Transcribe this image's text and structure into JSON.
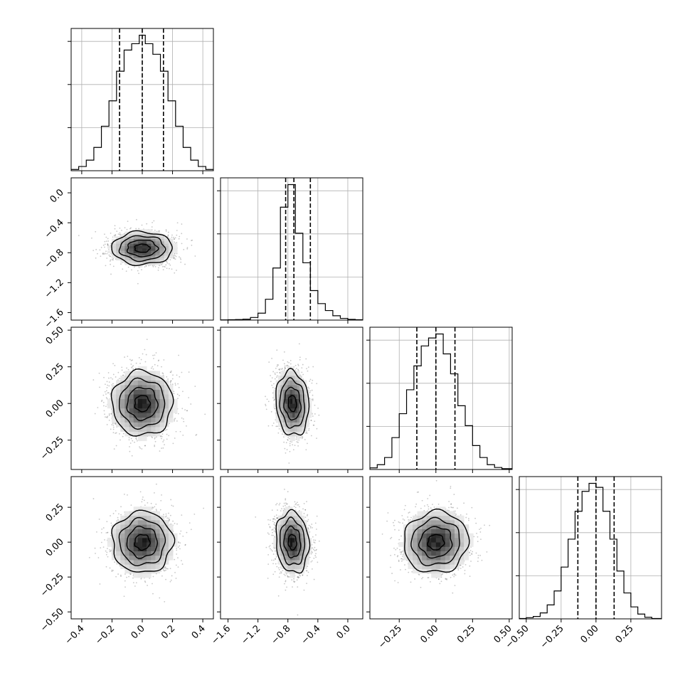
{
  "chart_data": {
    "type": "corner",
    "grid": true,
    "n_params": 4,
    "diag_quantiles": [
      [
        -0.15,
        0.0,
        0.14
      ],
      [
        -0.83,
        -0.72,
        -0.5
      ],
      [
        -0.13,
        0.0,
        0.13
      ],
      [
        -0.13,
        0.0,
        0.13
      ]
    ],
    "params": [
      {
        "range": [
          -0.47,
          0.47
        ],
        "center": 0.0,
        "sigma": 0.1,
        "ticks": [
          -0.4,
          -0.2,
          0.0,
          0.2,
          0.4
        ],
        "tick_labels": [
          "−0.4",
          "−0.2",
          "0.0",
          "0.2",
          "0.4"
        ]
      },
      {
        "range": [
          -1.7,
          0.2
        ],
        "center": -0.74,
        "sigma": 0.11,
        "ticks": [
          -1.6,
          -1.2,
          -0.8,
          -0.4,
          0.0
        ],
        "tick_labels": [
          "−1.6",
          "−1.2",
          "−0.8",
          "−0.4",
          "0.0"
        ]
      },
      {
        "range": [
          -0.45,
          0.52
        ],
        "center": 0.0,
        "sigma": 0.11,
        "ticks": [
          -0.25,
          0.0,
          0.25,
          0.5
        ],
        "tick_labels": [
          "−0.25",
          "0.00",
          "0.25",
          "0.50"
        ]
      },
      {
        "range": [
          -0.55,
          0.47
        ],
        "center": 0.0,
        "sigma": 0.11,
        "ticks": [
          -0.5,
          -0.25,
          0.0,
          0.25
        ],
        "tick_labels": [
          "−0.50",
          "−0.25",
          "0.00",
          "0.25"
        ]
      }
    ],
    "diag_hist": [
      {
        "bin_edges": [
          -0.47,
          -0.42,
          -0.37,
          -0.32,
          -0.27,
          -0.22,
          -0.17,
          -0.12,
          -0.07,
          -0.02,
          0.02,
          0.07,
          0.12,
          0.17,
          0.22,
          0.27,
          0.32,
          0.37,
          0.42,
          0.47
        ],
        "counts": [
          3,
          10,
          25,
          55,
          105,
          165,
          235,
          285,
          300,
          320,
          300,
          275,
          235,
          165,
          105,
          55,
          25,
          10,
          3
        ]
      },
      {
        "bin_edges": [
          -1.7,
          -1.6,
          -1.5,
          -1.4,
          -1.3,
          -1.2,
          -1.1,
          -1.0,
          -0.9,
          -0.8,
          -0.7,
          -0.6,
          -0.5,
          -0.4,
          -0.3,
          -0.2,
          -0.1,
          0.0,
          0.1,
          0.2
        ],
        "counts": [
          1,
          2,
          3,
          5,
          15,
          40,
          120,
          300,
          650,
          780,
          500,
          330,
          170,
          95,
          55,
          25,
          10,
          4,
          2
        ]
      },
      {
        "bin_edges": [
          -0.45,
          -0.4,
          -0.35,
          -0.3,
          -0.25,
          -0.2,
          -0.15,
          -0.1,
          -0.05,
          0.0,
          0.05,
          0.1,
          0.15,
          0.2,
          0.25,
          0.3,
          0.35,
          0.4,
          0.45,
          0.52
        ],
        "counts": [
          4,
          12,
          30,
          80,
          140,
          200,
          260,
          310,
          330,
          340,
          290,
          240,
          160,
          110,
          60,
          30,
          12,
          5,
          2
        ]
      },
      {
        "bin_edges": [
          -0.55,
          -0.5,
          -0.45,
          -0.4,
          -0.35,
          -0.3,
          -0.25,
          -0.2,
          -0.15,
          -0.1,
          -0.05,
          0.0,
          0.05,
          0.1,
          0.15,
          0.2,
          0.25,
          0.3,
          0.35,
          0.4,
          0.47
        ],
        "counts": [
          1,
          3,
          6,
          15,
          35,
          70,
          130,
          200,
          270,
          320,
          340,
          330,
          270,
          200,
          120,
          65,
          30,
          12,
          4,
          1
        ]
      }
    ],
    "contour_levels_sigma": [
      0.5,
      1.0,
      1.5,
      2.0
    ],
    "corr": {
      "1_0": 0.0,
      "2_0": 0.0,
      "2_1": -0.1,
      "3_0": 0.0,
      "3_1": -0.1,
      "3_2": 0.05
    }
  }
}
